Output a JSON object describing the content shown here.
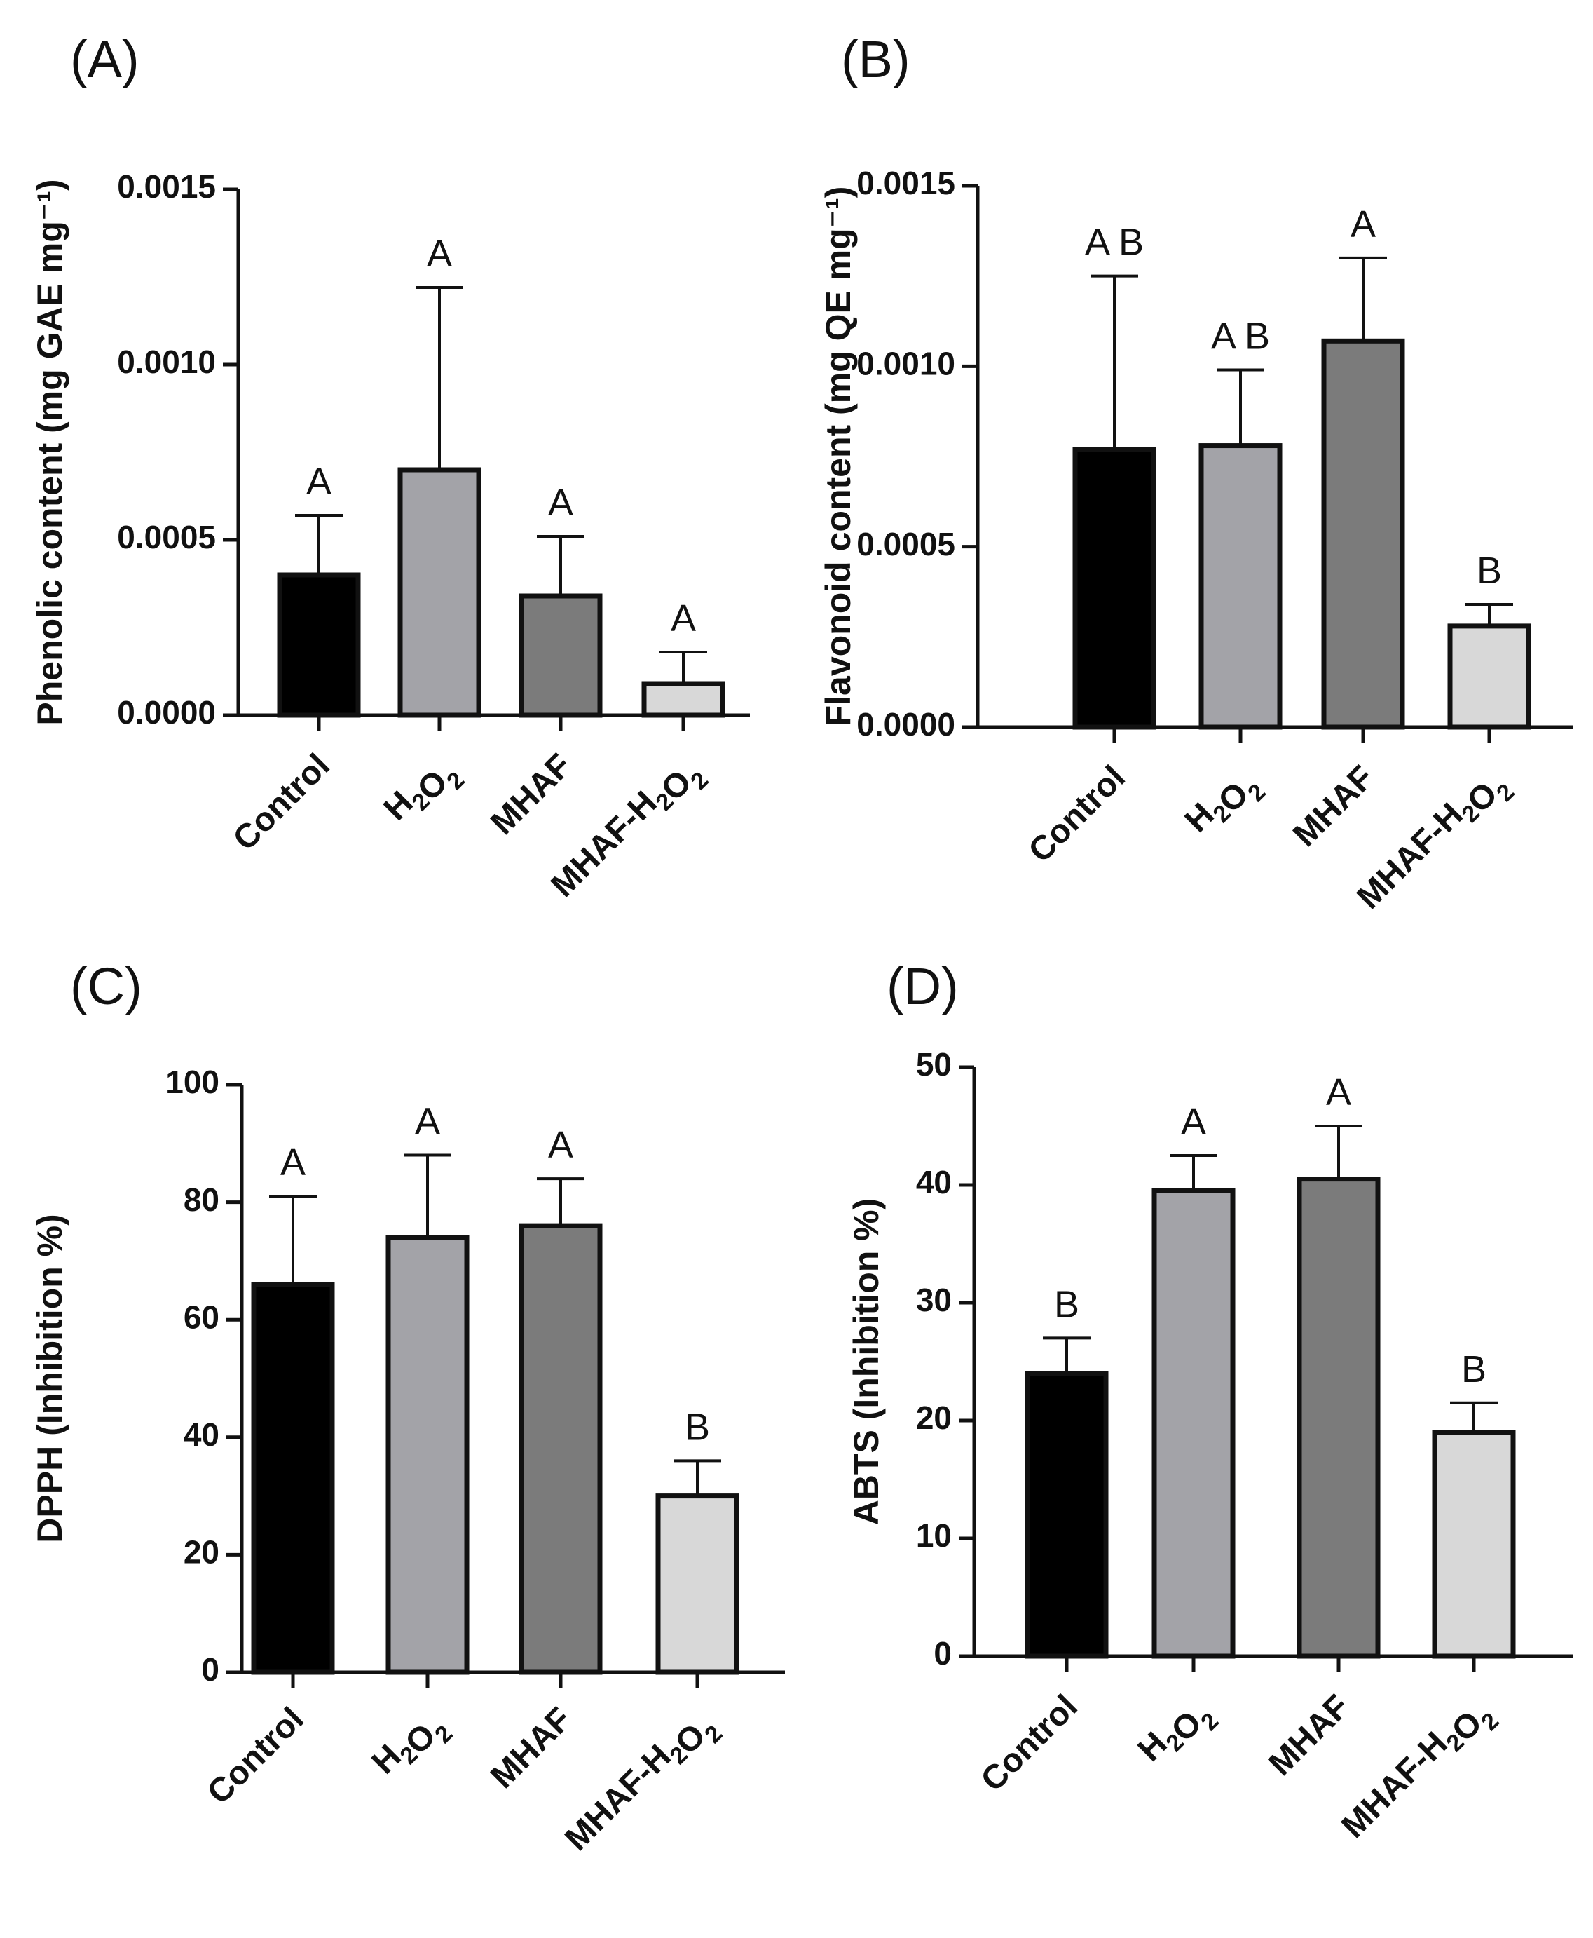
{
  "figure": {
    "background": "#ffffff"
  },
  "series_colors": [
    "#000000",
    "#a3a3a8",
    "#7b7b7b",
    "#d8d8d8"
  ],
  "chart_data": [
    {
      "panel": "(A)",
      "type": "bar",
      "ylabel": "Phenolic content (mg GAE mg⁻¹)",
      "ylim": [
        0,
        0.0015
      ],
      "yticks": [
        "0.0000",
        "0.0005",
        "0.0010",
        "0.0015"
      ],
      "ytick_values": [
        0,
        0.0005,
        0.001,
        0.0015
      ],
      "categories": [
        {
          "base": "Control",
          "formula": null
        },
        {
          "base": "",
          "formula": [
            [
              "H",
              "2"
            ],
            [
              "O",
              "2"
            ]
          ]
        },
        {
          "base": "MHAF",
          "formula": null
        },
        {
          "base": "MHAF-",
          "formula": [
            [
              "H",
              "2"
            ],
            [
              "O",
              "2"
            ]
          ]
        }
      ],
      "values": [
        0.0004,
        0.0007,
        0.00034,
        9e-05
      ],
      "errors": [
        0.00017,
        0.00052,
        0.00017,
        9e-05
      ],
      "significance": [
        "A",
        "A",
        "A",
        "A"
      ]
    },
    {
      "panel": "(B)",
      "type": "bar",
      "ylabel": "Flavonoid content (mg QE mg⁻¹)",
      "ylim": [
        0,
        0.0015
      ],
      "yticks": [
        "0.0000",
        "0.0005",
        "0.0010",
        "0.0015"
      ],
      "ytick_values": [
        0,
        0.0005,
        0.001,
        0.0015
      ],
      "categories": [
        {
          "base": "Control",
          "formula": null
        },
        {
          "base": "",
          "formula": [
            [
              "H",
              "2"
            ],
            [
              "O",
              "2"
            ]
          ]
        },
        {
          "base": "MHAF",
          "formula": null
        },
        {
          "base": "MHAF-",
          "formula": [
            [
              "H",
              "2"
            ],
            [
              "O",
              "2"
            ]
          ]
        }
      ],
      "values": [
        0.00077,
        0.00078,
        0.00107,
        0.00028
      ],
      "errors": [
        0.00048,
        0.00021,
        0.00023,
        6e-05
      ],
      "significance": [
        "A B",
        "A B",
        "A",
        "B"
      ]
    },
    {
      "panel": "(C)",
      "type": "bar",
      "ylabel": "DPPH (Inhibition %)",
      "ylim": [
        0,
        100
      ],
      "yticks": [
        "0",
        "20",
        "40",
        "60",
        "80",
        "100"
      ],
      "ytick_values": [
        0,
        20,
        40,
        60,
        80,
        100
      ],
      "categories": [
        {
          "base": "Control",
          "formula": null
        },
        {
          "base": "",
          "formula": [
            [
              "H",
              "2"
            ],
            [
              "O",
              "2"
            ]
          ]
        },
        {
          "base": "MHAF",
          "formula": null
        },
        {
          "base": "MHAF-",
          "formula": [
            [
              "H",
              "2"
            ],
            [
              "O",
              "2"
            ]
          ]
        }
      ],
      "values": [
        66,
        74,
        76,
        30
      ],
      "errors": [
        15,
        14,
        8,
        6
      ],
      "significance": [
        "A",
        "A",
        "A",
        "B"
      ]
    },
    {
      "panel": "(D)",
      "type": "bar",
      "ylabel": "ABTS (Inhibition %)",
      "ylim": [
        0,
        50
      ],
      "yticks": [
        "0",
        "10",
        "20",
        "30",
        "40",
        "50"
      ],
      "ytick_values": [
        0,
        10,
        20,
        30,
        40,
        50
      ],
      "categories": [
        {
          "base": "Control",
          "formula": null
        },
        {
          "base": "",
          "formula": [
            [
              "H",
              "2"
            ],
            [
              "O",
              "2"
            ]
          ]
        },
        {
          "base": "MHAF",
          "formula": null
        },
        {
          "base": "MHAF-",
          "formula": [
            [
              "H",
              "2"
            ],
            [
              "O",
              "2"
            ]
          ]
        }
      ],
      "values": [
        24,
        39.5,
        40.5,
        19
      ],
      "errors": [
        3,
        3,
        4.5,
        2.5
      ],
      "significance": [
        "B",
        "A",
        "A",
        "B"
      ]
    }
  ]
}
